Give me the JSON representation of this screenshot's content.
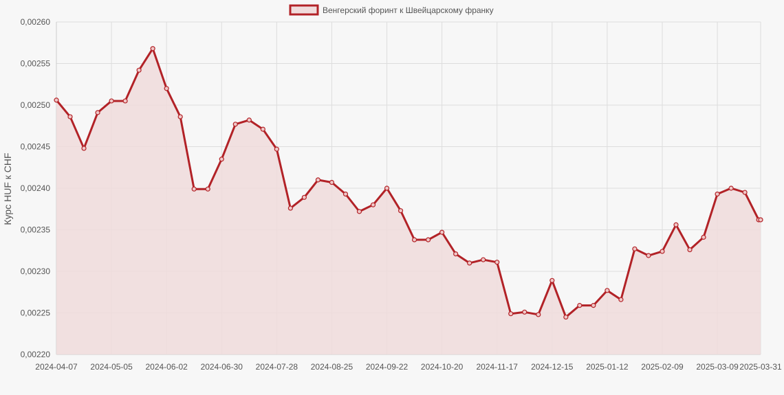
{
  "chart_data": {
    "type": "area",
    "legend": {
      "label": "Венгерский форинт к Швейцарскому франку",
      "placement": "top-center"
    },
    "ylabel": "Курс HUF к CHF",
    "ylim": [
      0.0022,
      0.0026
    ],
    "y_ticks": [
      "0,00220",
      "0,00225",
      "0,00230",
      "0,00235",
      "0,00240",
      "0,00245",
      "0,00250",
      "0,00255",
      "0,00260"
    ],
    "x_tick_labels": [
      "2024-04-07",
      "2024-05-05",
      "2024-06-02",
      "2024-06-30",
      "2024-07-28",
      "2024-08-25",
      "2024-09-22",
      "2024-10-20",
      "2024-11-17",
      "2024-12-15",
      "2025-01-12",
      "2025-02-09",
      "2025-03-09",
      "2025-03-31"
    ],
    "grid": true,
    "series": [
      {
        "name": "Венгерский форинт к Швейцарскому франку",
        "x": [
          "2024-04-07",
          "2024-04-14",
          "2024-04-21",
          "2024-04-28",
          "2024-05-05",
          "2024-05-12",
          "2024-05-19",
          "2024-05-26",
          "2024-06-02",
          "2024-06-09",
          "2024-06-16",
          "2024-06-23",
          "2024-06-30",
          "2024-07-07",
          "2024-07-14",
          "2024-07-21",
          "2024-07-28",
          "2024-08-04",
          "2024-08-11",
          "2024-08-18",
          "2024-08-25",
          "2024-09-01",
          "2024-09-08",
          "2024-09-15",
          "2024-09-22",
          "2024-09-29",
          "2024-10-06",
          "2024-10-13",
          "2024-10-20",
          "2024-10-27",
          "2024-11-03",
          "2024-11-10",
          "2024-11-17",
          "2024-11-24",
          "2024-12-01",
          "2024-12-08",
          "2024-12-15",
          "2024-12-22",
          "2024-12-29",
          "2025-01-05",
          "2025-01-12",
          "2025-01-19",
          "2025-01-26",
          "2025-02-02",
          "2025-02-09",
          "2025-02-16",
          "2025-02-23",
          "2025-03-02",
          "2025-03-09",
          "2025-03-16",
          "2025-03-23",
          "2025-03-30",
          "2025-03-31"
        ],
        "values": [
          0.002506,
          0.002486,
          0.002448,
          0.002491,
          0.002505,
          0.002505,
          0.002542,
          0.002568,
          0.00252,
          0.002486,
          0.002399,
          0.002399,
          0.002435,
          0.002477,
          0.002482,
          0.002471,
          0.002447,
          0.002376,
          0.002389,
          0.00241,
          0.002407,
          0.002393,
          0.002372,
          0.00238,
          0.0024,
          0.002373,
          0.002338,
          0.002338,
          0.002347,
          0.002321,
          0.00231,
          0.002314,
          0.002311,
          0.002249,
          0.002251,
          0.002248,
          0.002289,
          0.002245,
          0.002259,
          0.002259,
          0.002277,
          0.002266,
          0.002327,
          0.002319,
          0.002324,
          0.002356,
          0.002326,
          0.002341,
          0.002393,
          0.0024,
          0.002395,
          0.002362,
          0.002362
        ]
      }
    ],
    "colors": {
      "line": "#b22227",
      "fill": "#f0dcdc",
      "grid": "#dddddd",
      "background": "#f7f7f7"
    }
  }
}
